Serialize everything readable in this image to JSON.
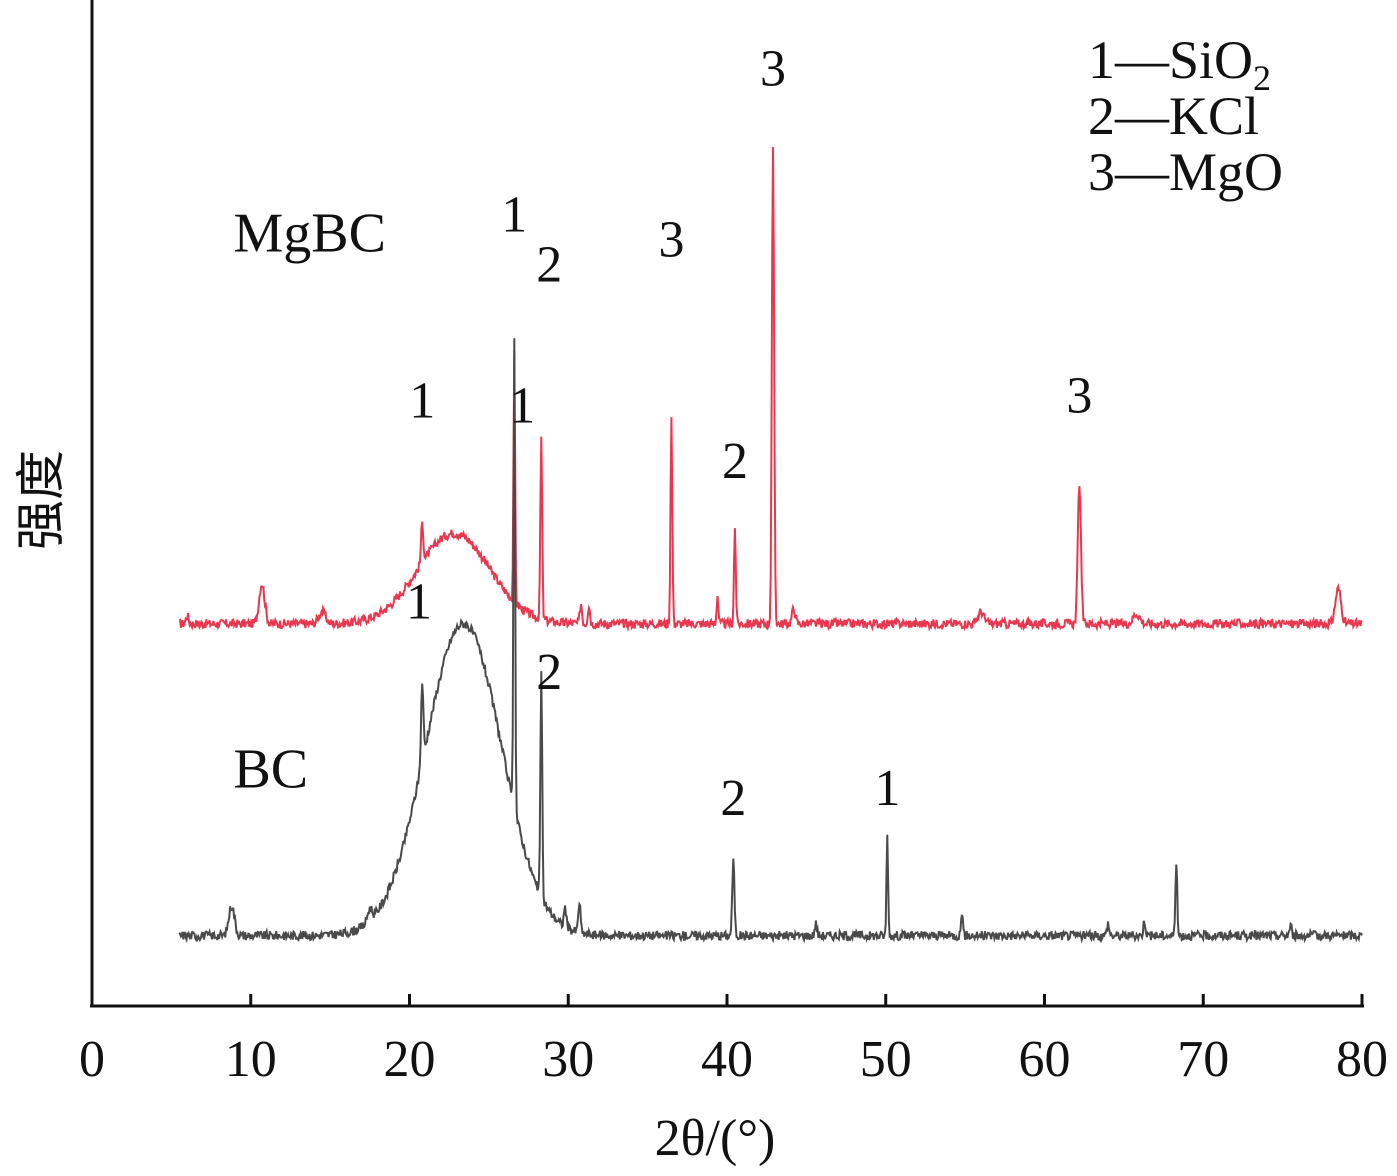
{
  "chart_data": {
    "type": "line",
    "xlabel": "2θ/(°)",
    "ylabel": "强度",
    "xlim": [
      0,
      80
    ],
    "xticks": [
      0,
      10,
      20,
      30,
      40,
      50,
      60,
      70,
      80
    ],
    "grid": false,
    "series": [
      {
        "name": "MgBC",
        "color": "#e8384f",
        "baseline": 0.38,
        "hump": {
          "center": 22.8,
          "width": 3.2,
          "height": 0.09
        },
        "peaks": [
          {
            "x": 6.0,
            "height": 0.008,
            "width": 0.12
          },
          {
            "x": 10.7,
            "height": 0.04,
            "width": 0.25
          },
          {
            "x": 14.5,
            "height": 0.012,
            "width": 0.3
          },
          {
            "x": 20.8,
            "height": 0.04,
            "width": 0.1
          },
          {
            "x": 26.6,
            "height": 0.245,
            "width": 0.07
          },
          {
            "x": 28.3,
            "height": 0.18,
            "width": 0.08
          },
          {
            "x": 30.8,
            "height": 0.02,
            "width": 0.1
          },
          {
            "x": 31.3,
            "height": 0.018,
            "width": 0.1
          },
          {
            "x": 36.5,
            "height": 0.205,
            "width": 0.08
          },
          {
            "x": 39.4,
            "height": 0.028,
            "width": 0.08
          },
          {
            "x": 40.5,
            "height": 0.095,
            "width": 0.08
          },
          {
            "x": 42.9,
            "height": 0.47,
            "width": 0.1
          },
          {
            "x": 44.2,
            "height": 0.015,
            "width": 0.15
          },
          {
            "x": 56.0,
            "height": 0.012,
            "width": 0.25
          },
          {
            "x": 62.2,
            "height": 0.14,
            "width": 0.14
          },
          {
            "x": 65.8,
            "height": 0.01,
            "width": 0.3
          },
          {
            "x": 78.5,
            "height": 0.035,
            "width": 0.25
          }
        ],
        "x_start": 5.5,
        "x_end": 80,
        "labels": [
          {
            "text": "1",
            "x": 20.8,
            "y": 0.585
          },
          {
            "text": "1",
            "x": 26.6,
            "y": 0.77
          },
          {
            "text": "2",
            "x": 28.8,
            "y": 0.72
          },
          {
            "text": "3",
            "x": 36.5,
            "y": 0.745
          },
          {
            "text": "2",
            "x": 40.5,
            "y": 0.525
          },
          {
            "text": "3",
            "x": 42.9,
            "y": 0.915
          },
          {
            "text": "3",
            "x": 62.2,
            "y": 0.59
          }
        ]
      },
      {
        "name": "BC",
        "color": "#4a4a4a",
        "baseline": 0.07,
        "hump": {
          "center": 23.4,
          "width": 3.4,
          "height": 0.31
        },
        "peaks": [
          {
            "x": 8.8,
            "height": 0.03,
            "width": 0.25
          },
          {
            "x": 17.5,
            "height": 0.012,
            "width": 0.2
          },
          {
            "x": 20.8,
            "height": 0.08,
            "width": 0.1
          },
          {
            "x": 26.6,
            "height": 0.47,
            "width": 0.07
          },
          {
            "x": 28.3,
            "height": 0.22,
            "width": 0.08
          },
          {
            "x": 29.8,
            "height": 0.02,
            "width": 0.1
          },
          {
            "x": 30.7,
            "height": 0.03,
            "width": 0.1
          },
          {
            "x": 40.4,
            "height": 0.075,
            "width": 0.1
          },
          {
            "x": 45.6,
            "height": 0.012,
            "width": 0.1
          },
          {
            "x": 50.1,
            "height": 0.1,
            "width": 0.07
          },
          {
            "x": 54.8,
            "height": 0.025,
            "width": 0.08
          },
          {
            "x": 64.0,
            "height": 0.012,
            "width": 0.1
          },
          {
            "x": 66.3,
            "height": 0.015,
            "width": 0.1
          },
          {
            "x": 68.3,
            "height": 0.075,
            "width": 0.08
          },
          {
            "x": 75.5,
            "height": 0.01,
            "width": 0.1
          }
        ],
        "x_start": 5.5,
        "x_end": 80,
        "labels": [
          {
            "text": "1",
            "x": 20.6,
            "y": 0.385
          },
          {
            "text": "1",
            "x": 27.1,
            "y": 0.58
          },
          {
            "text": "2",
            "x": 28.8,
            "y": 0.315
          },
          {
            "text": "2",
            "x": 40.4,
            "y": 0.19
          },
          {
            "text": "1",
            "x": 50.1,
            "y": 0.2
          }
        ]
      }
    ],
    "series_labels": [
      {
        "text": "MgBC",
        "x": 4.5,
        "y": 0.75
      },
      {
        "text": "BC",
        "x": 4.5,
        "y": 0.217
      }
    ],
    "legend": {
      "position": "top-right",
      "entries": [
        {
          "key": "1",
          "dash": "—",
          "formula": "SiO",
          "subscript": "2"
        },
        {
          "key": "2",
          "dash": "—",
          "formula": "KCl",
          "subscript": ""
        },
        {
          "key": "3",
          "dash": "—",
          "formula": "MgO",
          "subscript": ""
        }
      ]
    }
  }
}
